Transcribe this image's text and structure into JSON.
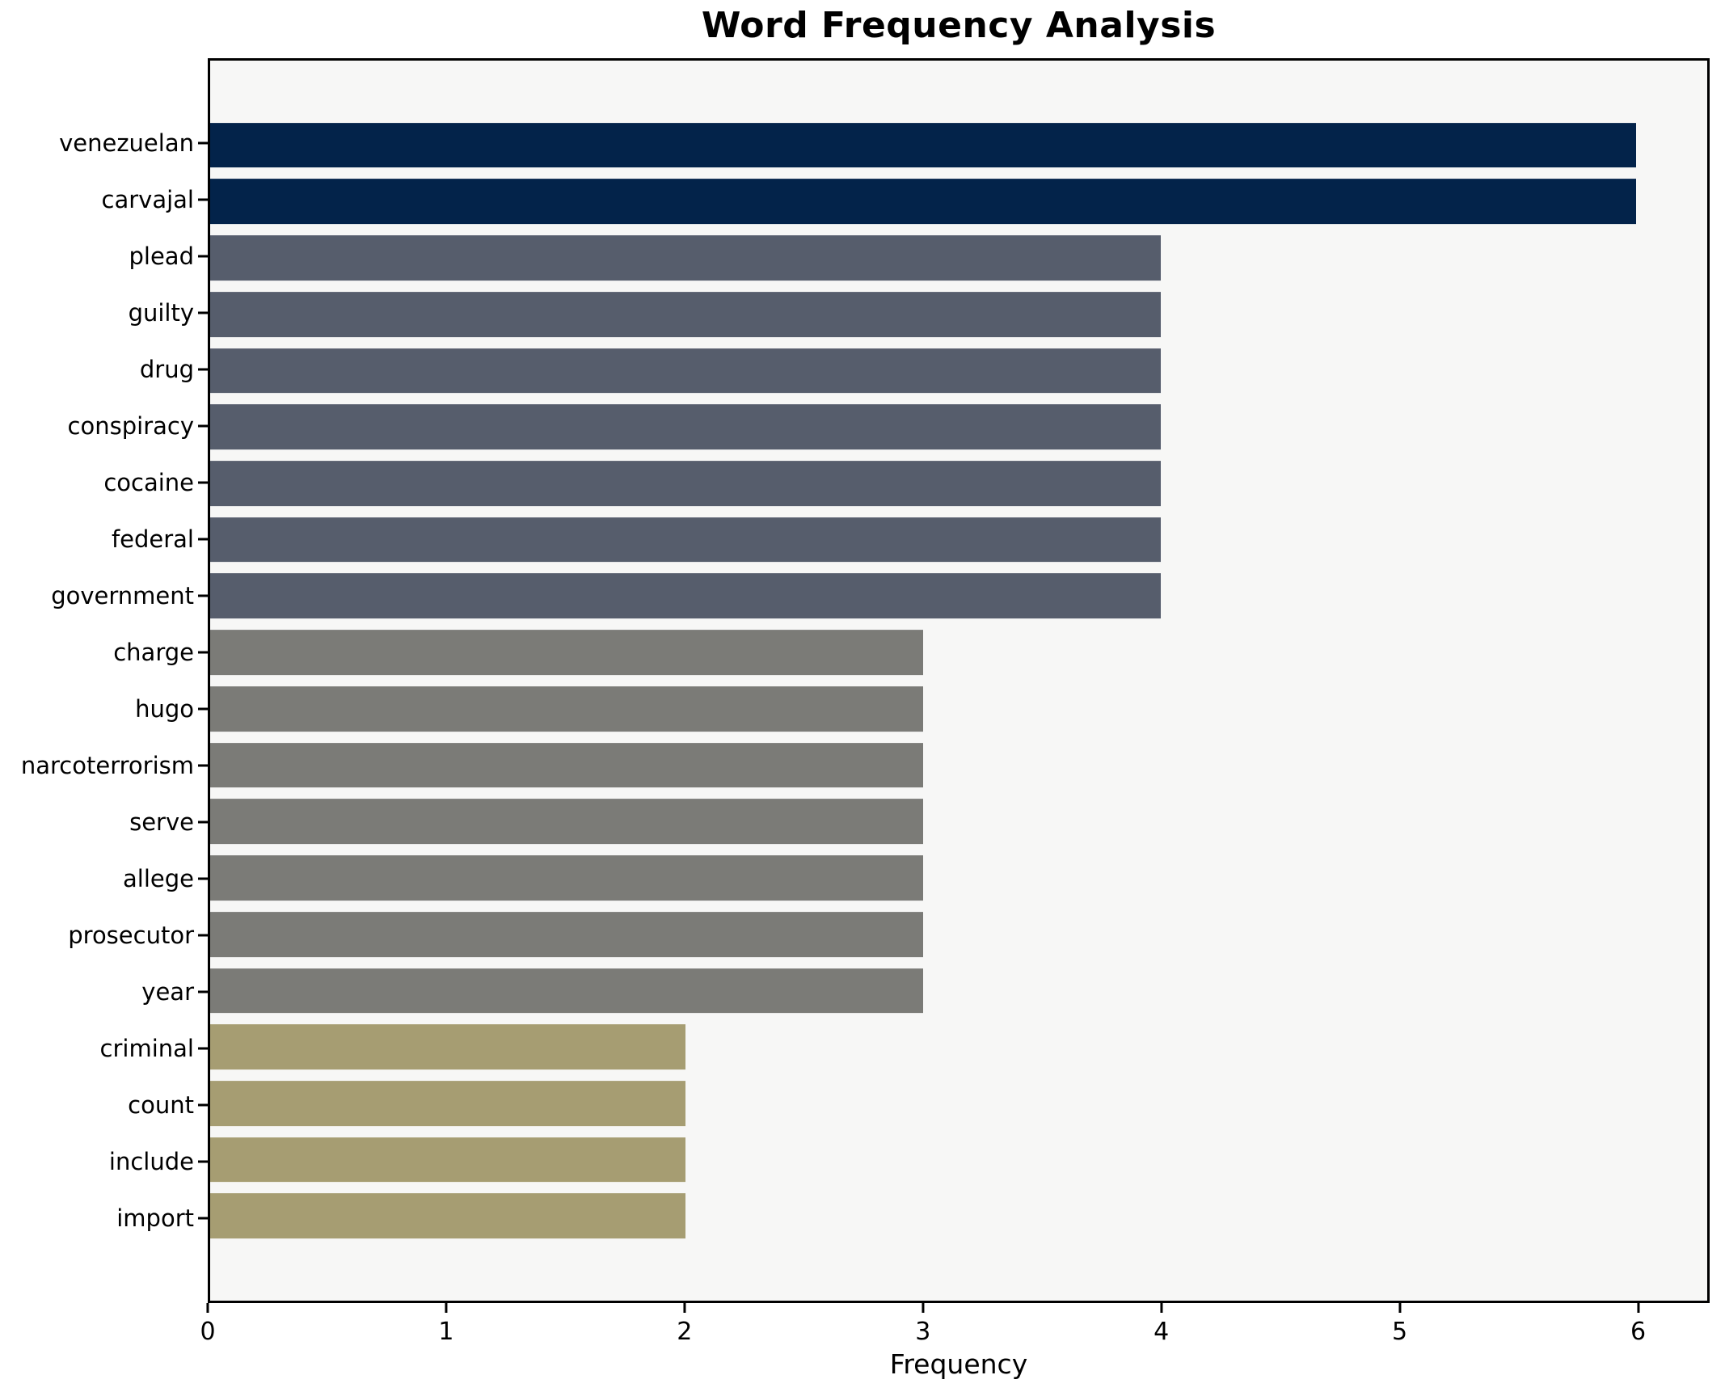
{
  "title": "Word Frequency Analysis",
  "chart_data": {
    "type": "bar",
    "orientation": "horizontal",
    "title": "Word Frequency Analysis",
    "xlabel": "Frequency",
    "ylabel": "",
    "categories": [
      "venezuelan",
      "carvajal",
      "plead",
      "guilty",
      "drug",
      "conspiracy",
      "cocaine",
      "federal",
      "government",
      "charge",
      "hugo",
      "narcoterrorism",
      "serve",
      "allege",
      "prosecutor",
      "year",
      "criminal",
      "count",
      "include",
      "import"
    ],
    "values": [
      6,
      6,
      4,
      4,
      4,
      4,
      4,
      4,
      4,
      3,
      3,
      3,
      3,
      3,
      3,
      3,
      2,
      2,
      2,
      2
    ],
    "bar_colors": [
      "#03234a",
      "#03234a",
      "#565d6c",
      "#565d6c",
      "#565d6c",
      "#565d6c",
      "#565d6c",
      "#565d6c",
      "#565d6c",
      "#7b7b77",
      "#7b7b77",
      "#7b7b77",
      "#7b7b77",
      "#7b7b77",
      "#7b7b77",
      "#7b7b77",
      "#a69d72",
      "#a69d72",
      "#a69d72",
      "#a69d72"
    ],
    "value_color_map": {
      "6": "#03234a",
      "4": "#565d6c",
      "3": "#7b7b77",
      "2": "#a69d72"
    },
    "xticks": [
      0,
      1,
      2,
      3,
      4,
      5,
      6
    ],
    "xlim": [
      0,
      6.3
    ],
    "grid": false,
    "legend": "none",
    "plot_background": "#f7f7f6",
    "figure_background": "#ffffff",
    "spine_color": "#000000"
  }
}
